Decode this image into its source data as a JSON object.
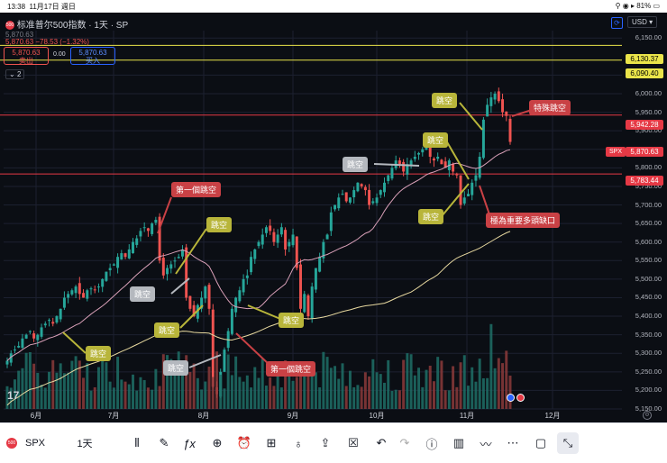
{
  "status_bar": {
    "time": "13:38",
    "date": "11月17日 週日",
    "battery": "81%"
  },
  "header": {
    "title": "标准普尔500指数 · 1天 · SP",
    "ohlc": "5,870.63  −78.53 (−1.32%)",
    "ohlc_prefix": "5,870.63",
    "ohlc_top": "5,870.63",
    "currency": "USD",
    "sell": {
      "price": "5,870.63",
      "label": "卖出"
    },
    "spread": "0.00",
    "buy": {
      "price": "5,870.63",
      "label": "买入"
    },
    "indicator_count": "2"
  },
  "price_axis": {
    "ticks": [
      "6,150.00",
      "6,050.00",
      "6,000.00",
      "5,950.00",
      "5,900.00",
      "5,850.00",
      "5,800.00",
      "5,750.00",
      "5,700.00",
      "5,650.00",
      "5,600.00",
      "5,550.00",
      "5,500.00",
      "5,450.00",
      "5,400.00",
      "5,350.00",
      "5,300.00",
      "5,250.00",
      "5,200.00",
      "5,150.00"
    ],
    "labels": {
      "yellow_top": "6,130.37",
      "yellow_2": "6,090.40",
      "red_1": "5,942.28",
      "spx_tag": "SPX",
      "spx_price": "5,870.63",
      "red_2": "5,783.44"
    }
  },
  "time_axis": [
    "6月",
    "7月",
    "8月",
    "9月",
    "10月",
    "11月",
    "12月"
  ],
  "annotations": {
    "first_gap_1": "第一個跳空",
    "gap_a": "跳空",
    "gap_b": "跳空",
    "gap_c": "跳空",
    "gap_d": "跳空",
    "gap_e": "跳空",
    "gap_f": "跳空",
    "gap_g": "跳空",
    "gap_h": "跳空",
    "gap_i": "跳空",
    "gap_j": "跳空",
    "first_gap_2": "第一個跳空",
    "special_gap": "特殊跳空",
    "important_gap": "極為重要多頭缺口"
  },
  "toolbar": {
    "symbol": "SPX",
    "interval": "1天"
  },
  "colors": {
    "up": "#26a69a",
    "down": "#ef5350",
    "yellow": "#eae44a",
    "red_line": "#e53945",
    "callout_yellow": "#b8b53a",
    "callout_red": "#c94145",
    "callout_gray": "#b4b8be"
  },
  "chart_data": {
    "type": "candlestick",
    "x_axis_labels": [
      "6月",
      "7月",
      "8月",
      "9月",
      "10月",
      "11月",
      "12月"
    ],
    "y_range": [
      5150,
      6170
    ],
    "horizontal_lines": [
      6130.37,
      6090.4,
      5942.28,
      5783.44
    ],
    "last_price": 5870.63,
    "close_series_approx": [
      5280,
      5300,
      5310,
      5320,
      5340,
      5350,
      5360,
      5340,
      5350,
      5370,
      5380,
      5390,
      5380,
      5400,
      5420,
      5450,
      5460,
      5470,
      5480,
      5460,
      5450,
      5470,
      5475,
      5470,
      5480,
      5500,
      5520,
      5530,
      5540,
      5560,
      5570,
      5560,
      5580,
      5600,
      5610,
      5630,
      5640,
      5630,
      5650,
      5660,
      5550,
      5510,
      5530,
      5540,
      5550,
      5560,
      5580,
      5450,
      5420,
      5400,
      5430,
      5450,
      5480,
      5420,
      5210,
      5190,
      5250,
      5310,
      5360,
      5420,
      5450,
      5470,
      5500,
      5510,
      5560,
      5580,
      5600,
      5620,
      5640,
      5630,
      5600,
      5620,
      5640,
      5580,
      5600,
      5620,
      5530,
      5420,
      5460,
      5400,
      5480,
      5530,
      5560,
      5600,
      5620,
      5680,
      5700,
      5720,
      5730,
      5710,
      5720,
      5740,
      5760,
      5750,
      5740,
      5700,
      5710,
      5720,
      5740,
      5760,
      5780,
      5800,
      5820,
      5810,
      5790,
      5810,
      5820,
      5830,
      5840,
      5850,
      5860,
      5830,
      5820,
      5830,
      5810,
      5800,
      5820,
      5790,
      5780,
      5700,
      5720,
      5730,
      5760,
      5780,
      5830,
      5930,
      5970,
      5990,
      6000,
      5980,
      5950,
      5940,
      5870
    ]
  }
}
